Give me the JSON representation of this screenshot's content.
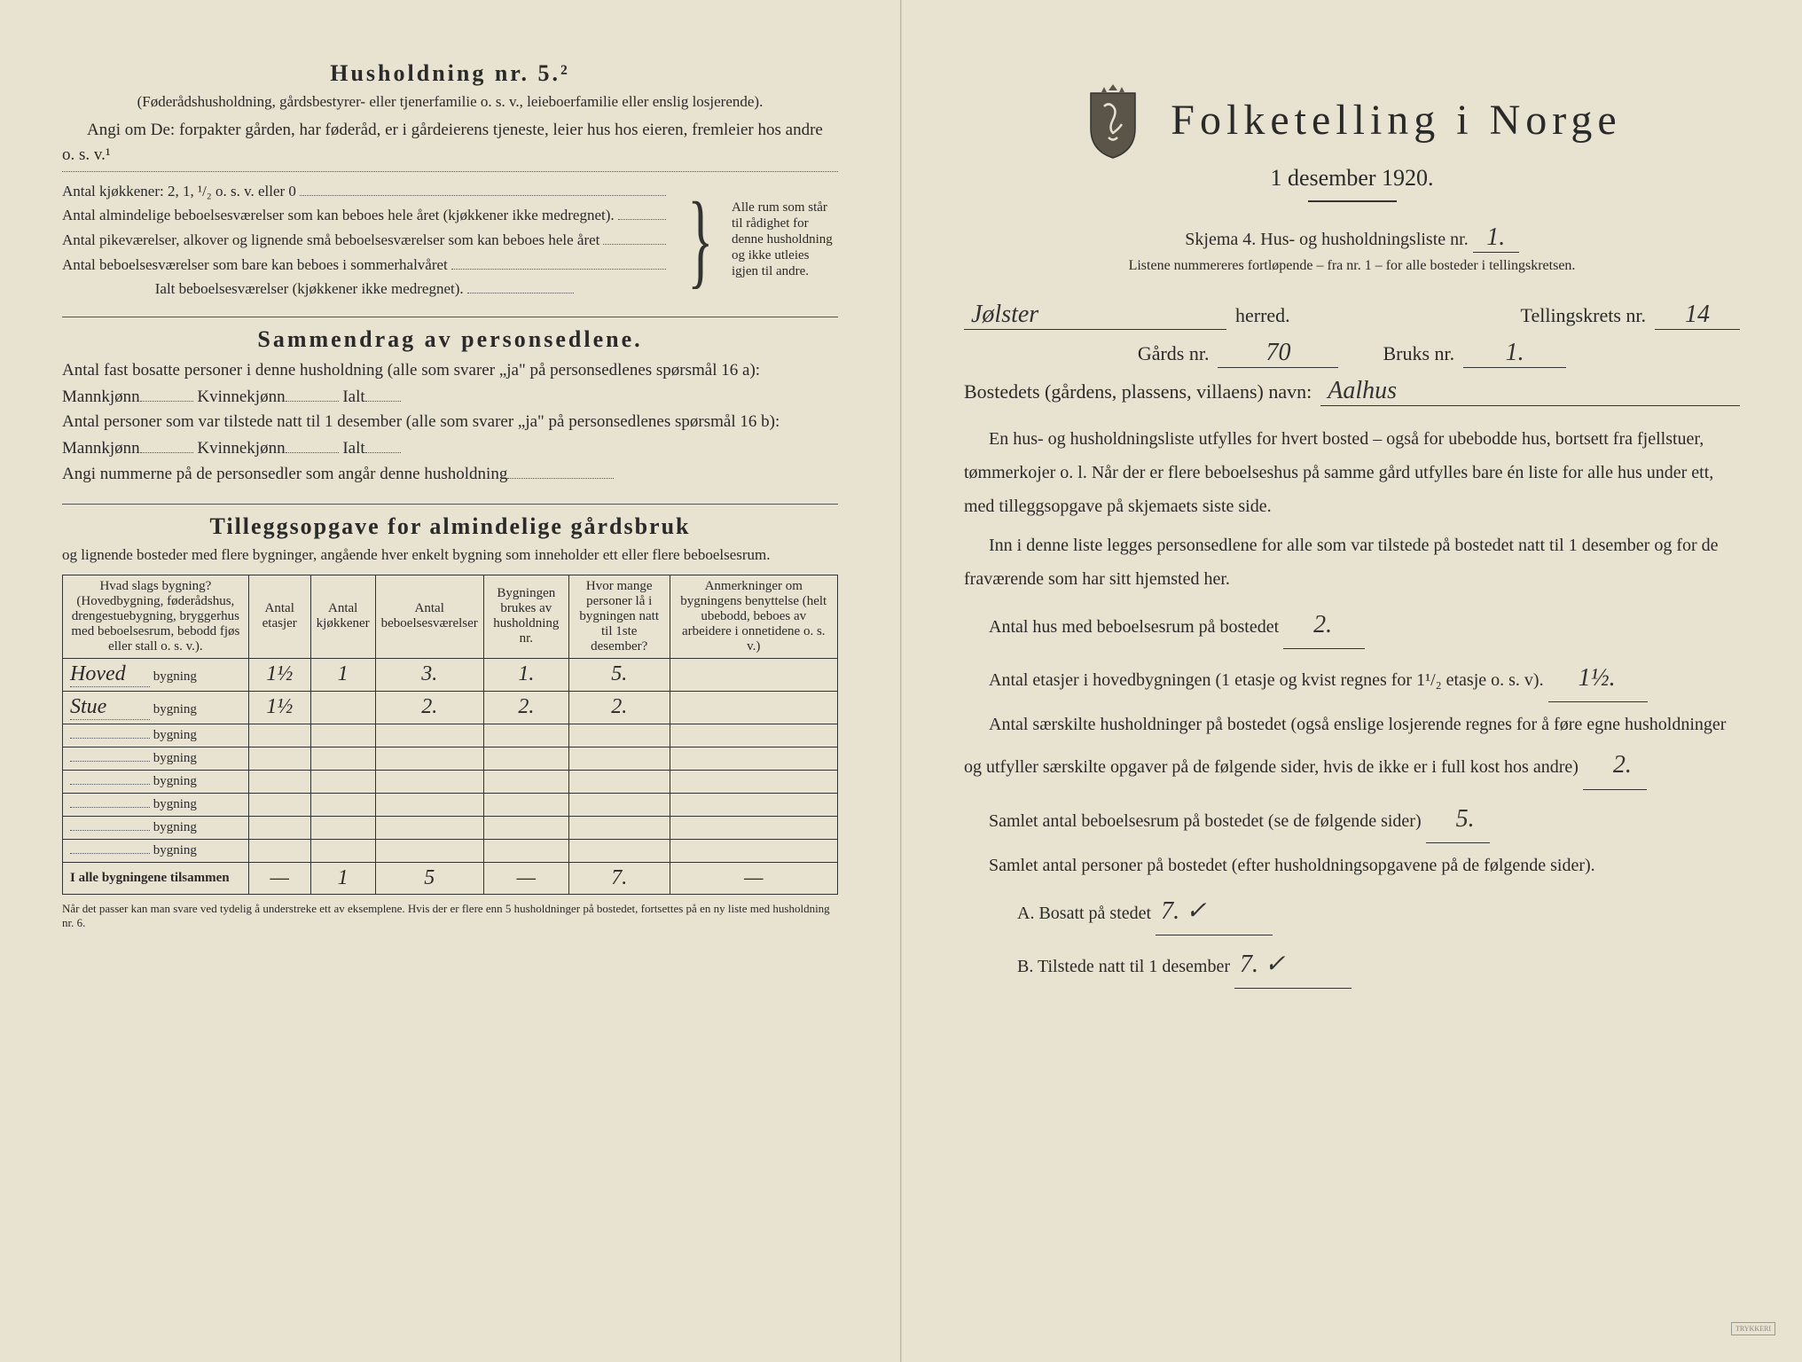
{
  "left": {
    "husholdning_title": "Husholdning nr. 5.²",
    "husholdning_sub": "(Føderådshusholdning, gårdsbestyrer- eller tjenerfamilie o. s. v., leieboerfamilie eller enslig losjerende).",
    "angi_om": "Angi om De: forpakter gården, har føderåd, er i gårdeierens tjeneste, leier hus hos eieren, fremleier hos andre o. s. v.¹",
    "kjokken_line": "Antal kjøkkener: 2, 1, ¹/₂ o. s. v. eller 0",
    "line_a": "Antal almindelige beboelsesværelser som kan beboes hele året (kjøkkener ikke medregnet).",
    "line_b": "Antal pikeværelser, alkover og lignende små beboelsesværelser som kan beboes hele året",
    "line_c": "Antal beboelsesværelser som bare kan beboes i sommerhalvåret",
    "ialt_line": "Ialt beboelsesværelser (kjøkkener ikke medregnet).",
    "brace_text": "Alle rum som står til rådighet for denne husholdning og ikke utleies igjen til andre.",
    "sammendrag_title": "Sammendrag av personsedlene.",
    "sammendrag_1": "Antal fast bosatte personer i denne husholdning (alle som svarer „ja\" på personsedlenes spørsmål 16 a): Mannkjønn",
    "kvinnekjonn": "Kvinnekjønn",
    "ialt": "Ialt",
    "sammendrag_2": "Antal personer som var tilstede natt til 1 desember (alle som svarer „ja\" på personsedlenes spørsmål 16 b): Mannkjønn",
    "angi_nummerne": "Angi nummerne på de personsedler som angår denne husholdning",
    "tillegg_title": "Tilleggsopgave for almindelige gårdsbruk",
    "tillegg_sub": "og lignende bosteder med flere bygninger, angående hver enkelt bygning som inneholder ett eller flere beboelsesrum.",
    "table": {
      "headers": [
        "Hvad slags bygning?\n(Hovedbygning, føderådshus, drengestuebygning, bryggerhus med beboelsesrum, bebodd fjøs eller stall o. s. v.).",
        "Antal etasjer",
        "Antal kjøkkener",
        "Antal beboelsesværelser",
        "Bygningen brukes av husholdning nr.",
        "Hvor mange personer lå i bygningen natt til 1ste desember?",
        "Anmerkninger om bygningens benyttelse (helt ubebodd, beboes av arbeidere i onnetidene o. s. v.)"
      ],
      "rows": [
        {
          "name": "Hoved",
          "suffix": "bygning",
          "etasjer": "1½",
          "kjokken": "1",
          "beboelse": "3.",
          "hushold": "1.",
          "personer": "5.",
          "anm": ""
        },
        {
          "name": "Stue",
          "suffix": "bygning",
          "etasjer": "1½",
          "kjokken": "",
          "beboelse": "2.",
          "hushold": "2.",
          "personer": "2.",
          "anm": ""
        },
        {
          "name": "",
          "suffix": "bygning",
          "etasjer": "",
          "kjokken": "",
          "beboelse": "",
          "hushold": "",
          "personer": "",
          "anm": ""
        },
        {
          "name": "",
          "suffix": "bygning",
          "etasjer": "",
          "kjokken": "",
          "beboelse": "",
          "hushold": "",
          "personer": "",
          "anm": ""
        },
        {
          "name": "",
          "suffix": "bygning",
          "etasjer": "",
          "kjokken": "",
          "beboelse": "",
          "hushold": "",
          "personer": "",
          "anm": ""
        },
        {
          "name": "",
          "suffix": "bygning",
          "etasjer": "",
          "kjokken": "",
          "beboelse": "",
          "hushold": "",
          "personer": "",
          "anm": ""
        },
        {
          "name": "",
          "suffix": "bygning",
          "etasjer": "",
          "kjokken": "",
          "beboelse": "",
          "hushold": "",
          "personer": "",
          "anm": ""
        },
        {
          "name": "",
          "suffix": "bygning",
          "etasjer": "",
          "kjokken": "",
          "beboelse": "",
          "hushold": "",
          "personer": "",
          "anm": ""
        }
      ],
      "total_label": "I alle bygningene tilsammen",
      "total": {
        "etasjer": "—",
        "kjokken": "1",
        "beboelse": "5",
        "hushold": "—",
        "personer": "7.",
        "anm": "—"
      }
    },
    "footnote": "Når det passer kan man svare ved tydelig å understreke ett av eksemplene.\nHvis der er flere enn 5 husholdninger på bostedet, fortsettes på en ny liste med husholdning nr. 6."
  },
  "right": {
    "main_title": "Folketelling i Norge",
    "subtitle": "1 desember 1920.",
    "skjema_line": "Skjema 4.  Hus- og husholdningsliste nr.",
    "skjema_nr": "1.",
    "listene_line": "Listene nummereres fortløpende – fra nr. 1 – for alle bosteder i tellingskretsen.",
    "herred_value": "Jølster",
    "herred_label": "herred.",
    "tellingskrets_label": "Tellingskrets nr.",
    "tellingskrets_value": "14",
    "gards_label": "Gårds nr.",
    "gards_value": "70",
    "bruks_label": "Bruks nr.",
    "bruks_value": "1.",
    "bosted_label": "Bostedets (gårdens, plassens, villaens) navn:",
    "bosted_value": "Aalhus",
    "para1": "En hus- og husholdningsliste utfylles for hvert bosted – også for ubebodde hus, bortsett fra fjellstuer, tømmerkojer o. l. Når der er flere beboelseshus på samme gård utfylles bare én liste for alle hus under ett, med tilleggsopgave på skjemaets siste side.",
    "para2": "Inn i denne liste legges personsedlene for alle som var tilstede på bostedet natt til 1 desember og for de fraværende som har sitt hjemsted her.",
    "antal_hus_label": "Antal hus med beboelsesrum på bostedet",
    "antal_hus_value": "2.",
    "antal_etasjer_label": "Antal etasjer i hovedbygningen (1 etasje og kvist regnes for 1¹/₂ etasje o. s. v).",
    "antal_etasjer_value": "1½.",
    "saerskilte_text": "Antal særskilte husholdninger på bostedet (også enslige losjerende regnes for å føre egne husholdninger og utfyller særskilte opgaver på de følgende sider, hvis de ikke er i full kost hos andre)",
    "saerskilte_value": "2.",
    "samlet_rum_label": "Samlet antal beboelsesrum på bostedet (se de følgende sider)",
    "samlet_rum_value": "5.",
    "samlet_personer_label": "Samlet antal personer på bostedet (efter husholdningsopgavene på de følgende sider).",
    "bosatt_label": "A.  Bosatt på stedet",
    "bosatt_value": "7. ✓",
    "tilstede_label": "B.  Tilstede natt til 1 desember",
    "tilstede_value": "7. ✓"
  }
}
